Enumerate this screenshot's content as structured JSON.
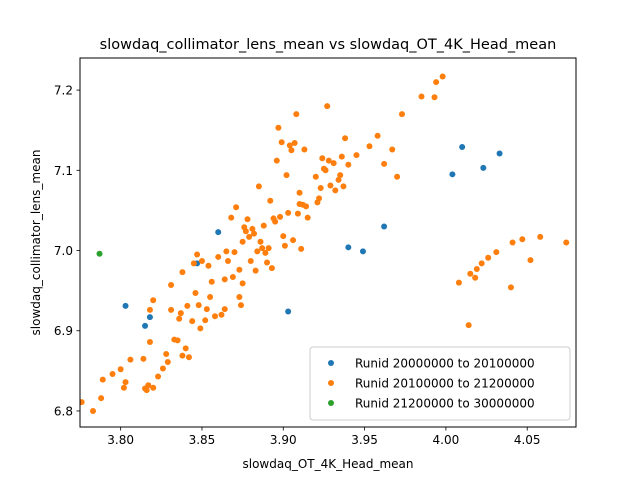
{
  "chart_data": {
    "type": "scatter",
    "title": "slowdaq_collimator_lens_mean vs slowdaq_OT_4K_Head_mean",
    "xlabel": "slowdaq_OT_4K_Head_mean",
    "ylabel": "slowdaq_collimator_lens_mean",
    "xlim": [
      3.775,
      4.08
    ],
    "ylim": [
      6.78,
      7.24
    ],
    "xticks": [
      "3.80",
      "3.85",
      "3.90",
      "3.95",
      "4.00",
      "4.05"
    ],
    "yticks": [
      "6.8",
      "6.9",
      "7.0",
      "7.1",
      "7.2"
    ],
    "legend_position": "lower-right",
    "series": [
      {
        "name": "Runid 20000000 to 20100000",
        "color": "#1f77b4",
        "points": [
          [
            3.803,
            6.931
          ],
          [
            3.815,
            6.906
          ],
          [
            3.818,
            6.917
          ],
          [
            3.847,
            6.984
          ],
          [
            3.86,
            7.023
          ],
          [
            3.903,
            6.924
          ],
          [
            3.94,
            7.004
          ],
          [
            3.949,
            6.999
          ],
          [
            3.962,
            7.03
          ],
          [
            4.004,
            7.095
          ],
          [
            4.01,
            7.129
          ],
          [
            4.023,
            7.103
          ],
          [
            4.033,
            7.121
          ]
        ]
      },
      {
        "name": "Runid 20100000 to 21200000",
        "color": "#ff7f0e",
        "points": [
          [
            3.776,
            6.811
          ],
          [
            3.783,
            6.8
          ],
          [
            3.788,
            6.816
          ],
          [
            3.789,
            6.839
          ],
          [
            3.795,
            6.846
          ],
          [
            3.8,
            6.852
          ],
          [
            3.802,
            6.829
          ],
          [
            3.803,
            6.836
          ],
          [
            3.806,
            6.864
          ],
          [
            3.814,
            6.865
          ],
          [
            3.815,
            6.828
          ],
          [
            3.816,
            6.826
          ],
          [
            3.817,
            6.832
          ],
          [
            3.818,
            6.886
          ],
          [
            3.818,
            6.926
          ],
          [
            3.82,
            6.829
          ],
          [
            3.82,
            6.938
          ],
          [
            3.823,
            6.843
          ],
          [
            3.826,
            6.853
          ],
          [
            3.828,
            6.871
          ],
          [
            3.829,
            6.861
          ],
          [
            3.831,
            6.926
          ],
          [
            3.831,
            6.957
          ],
          [
            3.833,
            6.889
          ],
          [
            3.835,
            6.888
          ],
          [
            3.836,
            6.915
          ],
          [
            3.837,
            6.922
          ],
          [
            3.838,
            6.869
          ],
          [
            3.838,
            6.973
          ],
          [
            3.84,
            6.878
          ],
          [
            3.841,
            6.931
          ],
          [
            3.842,
            6.867
          ],
          [
            3.844,
            6.912
          ],
          [
            3.845,
            6.984
          ],
          [
            3.846,
            6.947
          ],
          [
            3.847,
            6.995
          ],
          [
            3.848,
            6.932
          ],
          [
            3.849,
            6.903
          ],
          [
            3.85,
            6.987
          ],
          [
            3.852,
            6.913
          ],
          [
            3.853,
            6.927
          ],
          [
            3.854,
            6.981
          ],
          [
            3.855,
            6.942
          ],
          [
            3.856,
            6.961
          ],
          [
            3.858,
            6.918
          ],
          [
            3.86,
            6.992
          ],
          [
            3.862,
            6.92
          ],
          [
            3.864,
            6.927
          ],
          [
            3.864,
            6.964
          ],
          [
            3.865,
            6.999
          ],
          [
            3.866,
            6.987
          ],
          [
            3.868,
            7.041
          ],
          [
            3.869,
            6.967
          ],
          [
            3.87,
            6.998
          ],
          [
            3.871,
            7.054
          ],
          [
            3.873,
            6.976
          ],
          [
            3.873,
            6.942
          ],
          [
            3.874,
            6.932
          ],
          [
            3.875,
            6.959
          ],
          [
            3.875,
            7.011
          ],
          [
            3.876,
            7.029
          ],
          [
            3.877,
            7.024
          ],
          [
            3.878,
            7.039
          ],
          [
            3.879,
            7.017
          ],
          [
            3.88,
            6.987
          ],
          [
            3.881,
            7.027
          ],
          [
            3.882,
            7.021
          ],
          [
            3.883,
            6.975
          ],
          [
            3.884,
            6.999
          ],
          [
            3.885,
            7.08
          ],
          [
            3.886,
            7.011
          ],
          [
            3.887,
            7.003
          ],
          [
            3.888,
            7.031
          ],
          [
            3.889,
            6.997
          ],
          [
            3.89,
            6.985
          ],
          [
            3.891,
            7.003
          ],
          [
            3.892,
            7.062
          ],
          [
            3.893,
            6.978
          ],
          [
            3.894,
            7.04
          ],
          [
            3.895,
            7.036
          ],
          [
            3.896,
            7.112
          ],
          [
            3.897,
            7.153
          ],
          [
            3.898,
            7.042
          ],
          [
            3.899,
            7.135
          ],
          [
            3.9,
            7.018
          ],
          [
            3.901,
            7.006
          ],
          [
            3.902,
            7.094
          ],
          [
            3.903,
            7.047
          ],
          [
            3.904,
            7.131
          ],
          [
            3.905,
            7.125
          ],
          [
            3.906,
            7.013
          ],
          [
            3.907,
            7.134
          ],
          [
            3.908,
            7.17
          ],
          [
            3.909,
            7.046
          ],
          [
            3.91,
            7.072
          ],
          [
            3.91,
            7.058
          ],
          [
            3.911,
            7.002
          ],
          [
            3.912,
            7.057
          ],
          [
            3.913,
            7.126
          ],
          [
            3.914,
            7.055
          ],
          [
            3.915,
            7.041
          ],
          [
            3.92,
            7.092
          ],
          [
            3.921,
            7.06
          ],
          [
            3.922,
            7.065
          ],
          [
            3.923,
            7.078
          ],
          [
            3.924,
            7.115
          ],
          [
            3.925,
            7.102
          ],
          [
            3.926,
            7.1
          ],
          [
            3.927,
            7.18
          ],
          [
            3.928,
            7.112
          ],
          [
            3.929,
            7.081
          ],
          [
            3.931,
            7.109
          ],
          [
            3.932,
            7.075
          ],
          [
            3.934,
            7.088
          ],
          [
            3.935,
            7.094
          ],
          [
            3.936,
            7.117
          ],
          [
            3.937,
            7.08
          ],
          [
            3.938,
            7.14
          ],
          [
            3.94,
            7.107
          ],
          [
            3.945,
            7.119
          ],
          [
            3.953,
            7.13
          ],
          [
            3.958,
            7.143
          ],
          [
            3.962,
            7.108
          ],
          [
            3.967,
            7.126
          ],
          [
            3.97,
            7.092
          ],
          [
            3.973,
            7.17
          ],
          [
            3.985,
            7.192
          ],
          [
            3.993,
            7.191
          ],
          [
            3.994,
            7.21
          ],
          [
            3.998,
            7.217
          ],
          [
            4.008,
            6.96
          ],
          [
            4.014,
            6.907
          ],
          [
            4.015,
            6.971
          ],
          [
            4.018,
            6.966
          ],
          [
            4.019,
            6.977
          ],
          [
            4.022,
            6.984
          ],
          [
            4.026,
            6.991
          ],
          [
            4.031,
            6.998
          ],
          [
            4.04,
            6.954
          ],
          [
            4.041,
            7.01
          ],
          [
            4.047,
            7.014
          ],
          [
            4.052,
            6.988
          ],
          [
            4.058,
            7.017
          ],
          [
            4.074,
            7.01
          ]
        ]
      },
      {
        "name": "Runid 21200000 to 30000000",
        "color": "#2ca02c",
        "points": [
          [
            3.787,
            6.996
          ]
        ]
      }
    ]
  }
}
